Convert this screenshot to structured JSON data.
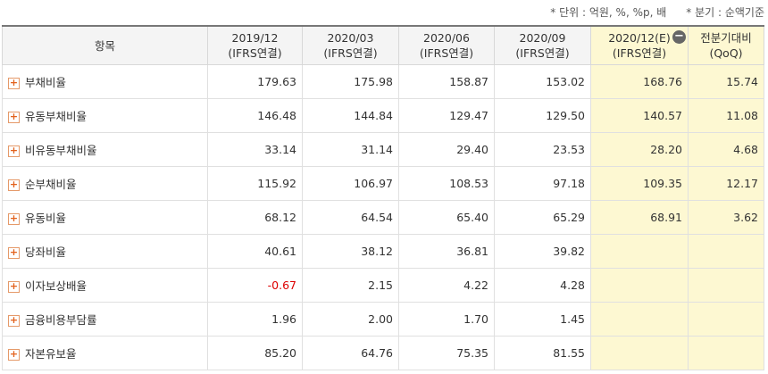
{
  "notes": [
    "* 단위 : 억원, %, %p, 배",
    "* 분기 : 순액기준"
  ],
  "table": {
    "header": {
      "item": "항목"
    },
    "columns": [
      {
        "period": "2019/12",
        "basis": "(IFRS연결)"
      },
      {
        "period": "2020/03",
        "basis": "(IFRS연결)"
      },
      {
        "period": "2020/06",
        "basis": "(IFRS연결)"
      },
      {
        "period": "2020/09",
        "basis": "(IFRS연결)"
      },
      {
        "period": "2020/12(E)",
        "basis": "(IFRS연결)"
      },
      {
        "period": "전분기대비",
        "basis": "(QoQ)"
      }
    ],
    "rows": [
      {
        "label": "부채비율",
        "values": [
          "179.63",
          "175.98",
          "158.87",
          "153.02",
          "168.76",
          "15.74"
        ]
      },
      {
        "label": "유동부채비율",
        "values": [
          "146.48",
          "144.84",
          "129.47",
          "129.50",
          "140.57",
          "11.08"
        ]
      },
      {
        "label": "비유동부채비율",
        "values": [
          "33.14",
          "31.14",
          "29.40",
          "23.53",
          "28.20",
          "4.68"
        ]
      },
      {
        "label": "순부채비율",
        "values": [
          "115.92",
          "106.97",
          "108.53",
          "97.18",
          "109.35",
          "12.17"
        ]
      },
      {
        "label": "유동비율",
        "values": [
          "68.12",
          "64.54",
          "65.40",
          "65.29",
          "68.91",
          "3.62"
        ]
      },
      {
        "label": "당좌비율",
        "values": [
          "40.61",
          "38.12",
          "36.81",
          "39.82"
        ]
      },
      {
        "label": "이자보상배율",
        "values": [
          "-0.67",
          "2.15",
          "4.22",
          "4.28"
        ]
      },
      {
        "label": "금융비용부담률",
        "values": [
          "1.96",
          "2.00",
          "1.70",
          "1.45"
        ]
      },
      {
        "label": "자본유보율",
        "values": [
          "85.20",
          "64.76",
          "75.35",
          "81.55"
        ]
      }
    ]
  }
}
